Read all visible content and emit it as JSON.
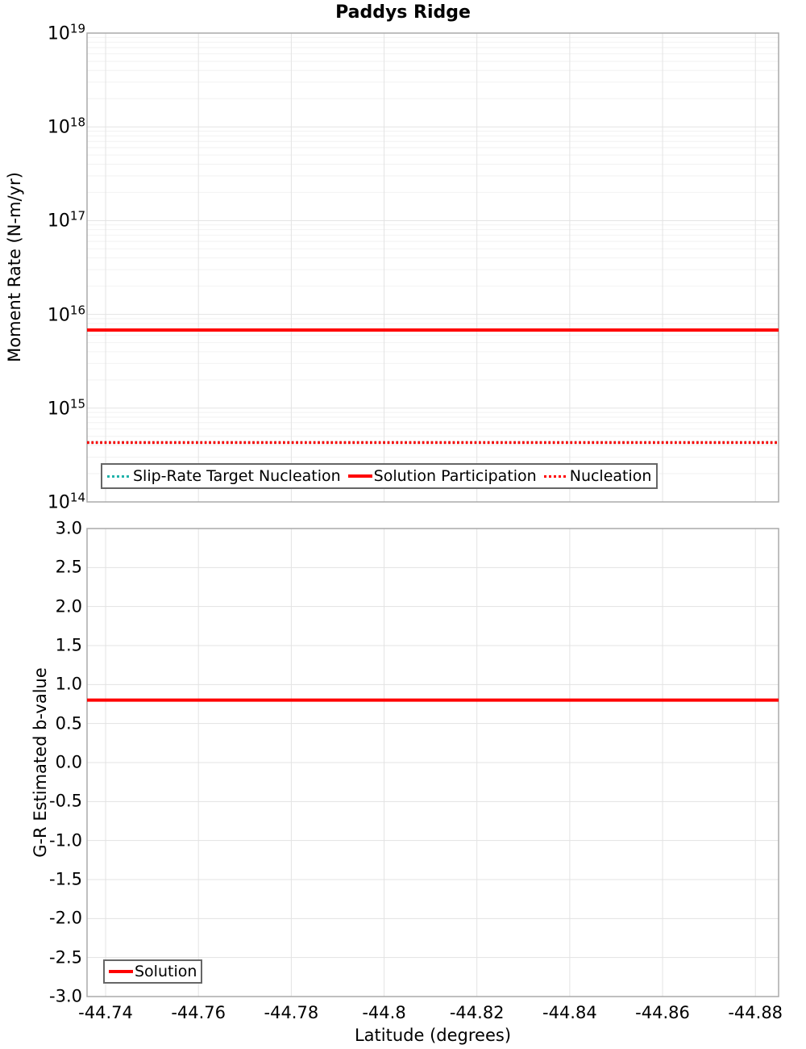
{
  "page": {
    "title": "Paddys Ridge"
  },
  "colors": {
    "accent_red": "#FF0000",
    "accent_teal": "#20B2AA",
    "grid_major": "#e3e3e3",
    "grid_minor": "#f2f2f2",
    "frame": "#aaaaaa",
    "legend_border": "#666666"
  },
  "chart_data": [
    {
      "type": "line",
      "title": "Paddys Ridge",
      "ylabel": "Moment Rate (N-m/yr)",
      "yscale": "log",
      "ylim_exponents": [
        14,
        19
      ],
      "ytick_exponents": [
        19,
        18,
        17,
        16,
        15,
        14
      ],
      "xlim": [
        -44.736,
        -44.885
      ],
      "xticks": [
        -44.74,
        -44.76,
        -44.78,
        -44.8,
        -44.82,
        -44.84,
        -44.86,
        -44.88
      ],
      "grid": true,
      "legend_position": "bottom-left",
      "series": [
        {
          "name": "Slip-Rate Target Nucleation",
          "color": "#20B2AA",
          "style": "dotted",
          "constant_value": 430000000000000.0
        },
        {
          "name": "Solution Participation",
          "color": "#FF0000",
          "style": "solid",
          "constant_value": 6800000000000000.0
        },
        {
          "name": "Nucleation",
          "color": "#FF0000",
          "style": "dotted",
          "constant_value": 430000000000000.0
        }
      ]
    },
    {
      "type": "line",
      "ylabel": "G-R Estimated b-value",
      "xlabel": "Latitude (degrees)",
      "yscale": "linear",
      "ylim": [
        -3.0,
        3.0
      ],
      "ytick_step": 0.5,
      "xlim": [
        -44.736,
        -44.885
      ],
      "xticks": [
        -44.74,
        -44.76,
        -44.78,
        -44.8,
        -44.82,
        -44.84,
        -44.86,
        -44.88
      ],
      "grid": true,
      "legend_position": "bottom-left",
      "series": [
        {
          "name": "Solution",
          "color": "#FF0000",
          "style": "solid",
          "constant_value": 0.8
        }
      ]
    }
  ]
}
